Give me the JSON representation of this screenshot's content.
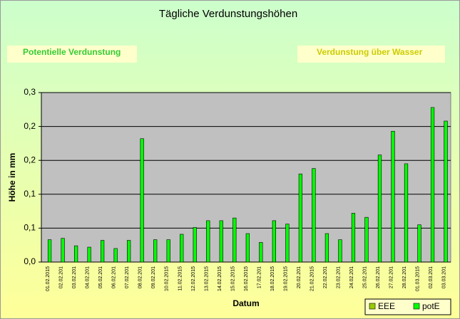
{
  "chart_data": {
    "type": "bar",
    "title": "Tägliche Verdunstungshöhen",
    "annotations": [
      "Potentielle Verdunstung",
      "Verdunstung über Wasser"
    ],
    "ylabel": "Höhe in mm",
    "xlabel": "Datum",
    "categories": [
      "01.02.2015",
      "02.02.201",
      "03.02.201",
      "04.02.201",
      "05.02.201",
      "06.02.201",
      "07.02.201",
      "08.02.201",
      "09.02.201",
      "10.02.2015",
      "11.02.2015",
      "12.02.2015",
      "13.02.2015",
      "14.02.2015",
      "15.02.2015",
      "16.02.2015",
      "17.02.201",
      "18.02.2015",
      "19.02.2015",
      "20.02.201",
      "21.02.2015",
      "22.02.201",
      "23.02.201",
      "24.02.201",
      "25.02.201",
      "26.02.201",
      "27.02.201",
      "28.02.201",
      "01.03.2015",
      "02.03.201",
      "03.03.201"
    ],
    "series": [
      {
        "name": "EEE",
        "color": "#99cc00",
        "values": [
          null,
          null,
          null,
          null,
          null,
          null,
          null,
          null,
          null,
          null,
          null,
          null,
          null,
          null,
          null,
          null,
          null,
          null,
          null,
          null,
          null,
          null,
          null,
          null,
          null,
          null,
          null,
          null,
          null,
          null,
          null
        ]
      },
      {
        "name": "potE",
        "color": "#00ff00",
        "values": [
          0.033,
          0.035,
          0.024,
          0.022,
          0.032,
          0.02,
          0.032,
          0.182,
          0.033,
          0.033,
          0.041,
          0.051,
          0.061,
          0.061,
          0.065,
          0.042,
          0.029,
          0.061,
          0.056,
          0.13,
          0.138,
          0.042,
          0.033,
          0.072,
          0.066,
          0.158,
          0.193,
          0.145,
          0.055,
          0.228,
          0.208
        ]
      }
    ],
    "ylim": [
      0,
      0.25
    ],
    "yticks": [
      {
        "value": 0,
        "label": "0,0"
      },
      {
        "value": 0.05,
        "label": "0,1"
      },
      {
        "value": 0.1,
        "label": "0,1"
      },
      {
        "value": 0.15,
        "label": "0,2"
      },
      {
        "value": 0.2,
        "label": "0,2"
      },
      {
        "value": 0.25,
        "label": "0,3"
      }
    ],
    "grid": true,
    "legend": "bottom-right"
  }
}
